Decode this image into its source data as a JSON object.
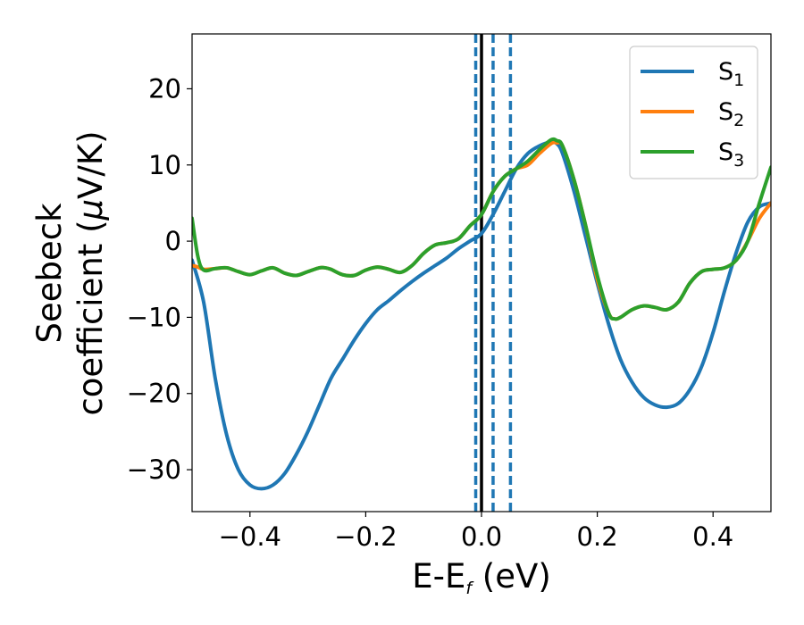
{
  "chart_data": {
    "type": "line",
    "xlabel_main": "E-E",
    "xlabel_sub": "f",
    "xlabel_unit": " (eV)",
    "ylabel_line1": "Seebeck",
    "ylabel_line2_text": "coefficient  (",
    "ylabel_line2_mu": "μ",
    "ylabel_line2_unit": "V/K)",
    "xlim": [
      -0.5,
      0.5
    ],
    "ylim": [
      -35.5,
      27.2
    ],
    "xticks": [
      -0.4,
      -0.2,
      0.0,
      0.2,
      0.4
    ],
    "xtick_labels": [
      "−0.4",
      "−0.2",
      "0.0",
      "0.2",
      "0.4"
    ],
    "yticks": [
      -30,
      -20,
      -10,
      0,
      10,
      20
    ],
    "ytick_labels": [
      "−30",
      "−20",
      "−10",
      "0",
      "10",
      "20"
    ],
    "vlines": [
      {
        "x": 0.0,
        "style": "solid",
        "color": "#000000"
      },
      {
        "x": -0.01,
        "style": "dashed",
        "color": "#1f77b4"
      },
      {
        "x": 0.02,
        "style": "dashed",
        "color": "#1f77b4"
      },
      {
        "x": 0.05,
        "style": "dashed",
        "color": "#1f77b4"
      }
    ],
    "legend_position": "top-right",
    "series": [
      {
        "name": "S",
        "sub": "1",
        "color": "#1f77b4",
        "x": [
          -0.5,
          -0.48,
          -0.46,
          -0.44,
          -0.42,
          -0.4,
          -0.38,
          -0.36,
          -0.34,
          -0.32,
          -0.3,
          -0.28,
          -0.26,
          -0.24,
          -0.22,
          -0.2,
          -0.18,
          -0.16,
          -0.14,
          -0.12,
          -0.1,
          -0.08,
          -0.06,
          -0.04,
          -0.02,
          0.0,
          0.02,
          0.04,
          0.06,
          0.08,
          0.1,
          0.12,
          0.13,
          0.14,
          0.16,
          0.18,
          0.2,
          0.22,
          0.24,
          0.26,
          0.28,
          0.3,
          0.32,
          0.34,
          0.36,
          0.38,
          0.4,
          0.42,
          0.44,
          0.46,
          0.48,
          0.5
        ],
        "y": [
          -2.5,
          -8,
          -18,
          -25.5,
          -30,
          -32,
          -32.5,
          -32,
          -30.5,
          -28,
          -25,
          -21.5,
          -18,
          -15.5,
          -13,
          -10.8,
          -9,
          -7.8,
          -6.5,
          -5.3,
          -4.2,
          -3.2,
          -2.2,
          -1.0,
          0.0,
          1.0,
          3.5,
          6.5,
          9.5,
          11.5,
          12.5,
          13.0,
          12.8,
          11.5,
          6.5,
          0.5,
          -5.5,
          -11,
          -15.5,
          -18.5,
          -20.5,
          -21.5,
          -21.8,
          -21.3,
          -19.5,
          -16.5,
          -12,
          -6.5,
          -1.5,
          2.5,
          4.5,
          5.0
        ]
      },
      {
        "name": "S",
        "sub": "2",
        "color": "#ff7f0e",
        "x": [
          -0.5,
          -0.49,
          -0.48,
          -0.46,
          -0.44,
          -0.42,
          -0.4,
          -0.38,
          -0.36,
          -0.34,
          -0.32,
          -0.3,
          -0.28,
          -0.27,
          -0.26,
          -0.24,
          -0.22,
          -0.2,
          -0.18,
          -0.16,
          -0.14,
          -0.12,
          -0.1,
          -0.08,
          -0.06,
          -0.04,
          -0.02,
          0.0,
          0.02,
          0.04,
          0.06,
          0.08,
          0.1,
          0.12,
          0.13,
          0.14,
          0.16,
          0.18,
          0.2,
          0.22,
          0.23,
          0.24,
          0.26,
          0.28,
          0.3,
          0.32,
          0.34,
          0.36,
          0.38,
          0.4,
          0.42,
          0.44,
          0.46,
          0.48,
          0.5
        ],
        "y": [
          -3.2,
          -3.4,
          -3.7,
          -3.6,
          -3.5,
          -4.0,
          -4.4,
          -3.9,
          -3.5,
          -4.2,
          -4.5,
          -4.0,
          -3.5,
          -3.5,
          -3.7,
          -4.4,
          -4.5,
          -3.8,
          -3.4,
          -3.7,
          -4.1,
          -3.2,
          -1.6,
          -0.5,
          -0.2,
          0.3,
          2.0,
          3.5,
          6.5,
          8.5,
          9.5,
          10.0,
          11.5,
          12.8,
          12.9,
          12.5,
          8.0,
          2.0,
          -5.0,
          -9.5,
          -10.2,
          -10.0,
          -9.0,
          -8.5,
          -8.7,
          -9.0,
          -8.0,
          -5.5,
          -4.0,
          -3.7,
          -3.5,
          -2.5,
          0.0,
          3.0,
          5.0
        ]
      },
      {
        "name": "S",
        "sub": "3",
        "color": "#2ca02c",
        "x": [
          -0.5,
          -0.49,
          -0.48,
          -0.46,
          -0.44,
          -0.42,
          -0.4,
          -0.38,
          -0.36,
          -0.34,
          -0.32,
          -0.3,
          -0.28,
          -0.27,
          -0.26,
          -0.24,
          -0.22,
          -0.2,
          -0.18,
          -0.16,
          -0.14,
          -0.12,
          -0.1,
          -0.08,
          -0.06,
          -0.04,
          -0.02,
          0.0,
          0.02,
          0.04,
          0.06,
          0.08,
          0.1,
          0.12,
          0.13,
          0.14,
          0.16,
          0.18,
          0.2,
          0.22,
          0.23,
          0.24,
          0.26,
          0.28,
          0.3,
          0.32,
          0.34,
          0.36,
          0.38,
          0.4,
          0.42,
          0.44,
          0.46,
          0.48,
          0.5
        ],
        "y": [
          3.0,
          -2.0,
          -3.8,
          -3.6,
          -3.5,
          -4.0,
          -4.4,
          -3.9,
          -3.5,
          -4.2,
          -4.5,
          -4.0,
          -3.5,
          -3.5,
          -3.7,
          -4.4,
          -4.5,
          -3.8,
          -3.4,
          -3.7,
          -4.1,
          -3.2,
          -1.6,
          -0.5,
          -0.2,
          0.3,
          2.0,
          3.5,
          6.5,
          8.5,
          9.5,
          10.5,
          12.0,
          13.3,
          13.2,
          12.5,
          8.0,
          2.0,
          -4.5,
          -9.5,
          -10.2,
          -10.0,
          -9.0,
          -8.5,
          -8.7,
          -9.0,
          -8.0,
          -5.5,
          -4.0,
          -3.7,
          -3.5,
          -2.5,
          0.0,
          5.0,
          9.7
        ]
      }
    ]
  }
}
